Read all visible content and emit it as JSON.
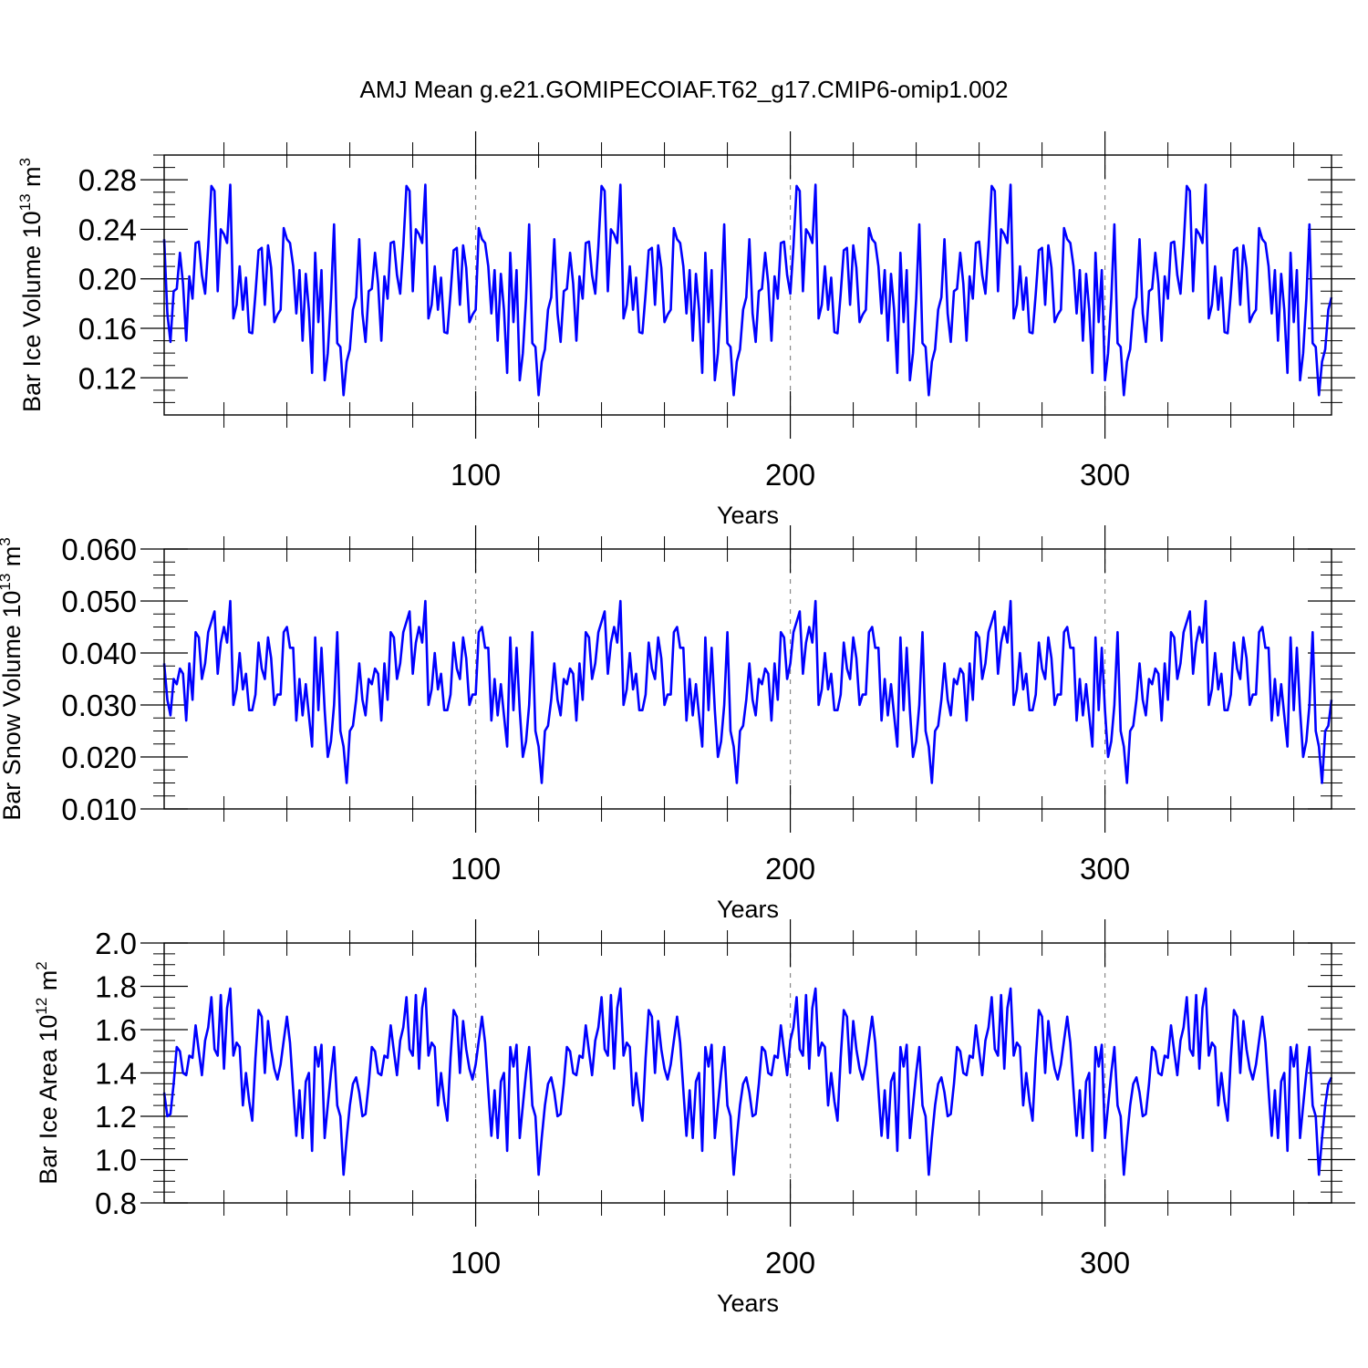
{
  "title": "AMJ Mean g.e21.GOMIPECOIAF.T62_g17.CMIP6-omip1.002",
  "line_color": "#0000ff",
  "chart_data": [
    {
      "type": "line",
      "ylabel_main": "Bar Ice Volume 10",
      "ylabel_exp": "13",
      "ylabel_unit": " m",
      "ylabel_unit_exp": "3",
      "xlabel": "Years",
      "xlim": [
        1,
        372
      ],
      "ylim": [
        0.09,
        0.3
      ],
      "yticks": [
        0.12,
        0.16,
        0.2,
        0.24,
        0.28
      ],
      "ytick_labels": [
        "0.12",
        "0.16",
        "0.20",
        "0.24",
        "0.28"
      ],
      "xticks": [
        100,
        200,
        300
      ],
      "xtick_labels": [
        "100",
        "200",
        "300"
      ],
      "grid_vertical_dashed": [
        100,
        200,
        300
      ],
      "pattern_start_year": 1,
      "pattern_period": 62,
      "repeats": 6,
      "pattern_values": [
        0.232,
        0.172,
        0.149,
        0.19,
        0.192,
        0.221,
        0.196,
        0.15,
        0.202,
        0.184,
        0.229,
        0.23,
        0.203,
        0.188,
        0.226,
        0.275,
        0.271,
        0.19,
        0.24,
        0.236,
        0.229,
        0.276,
        0.168,
        0.179,
        0.21,
        0.175,
        0.201,
        0.157,
        0.156,
        0.188,
        0.223,
        0.225,
        0.179,
        0.227,
        0.209,
        0.165,
        0.171,
        0.175,
        0.241,
        0.232,
        0.229,
        0.21,
        0.172,
        0.207,
        0.15,
        0.204,
        0.175,
        0.124,
        0.221,
        0.165,
        0.207,
        0.118,
        0.14,
        0.184,
        0.244,
        0.148,
        0.145,
        0.106,
        0.133,
        0.143,
        0.175,
        0.185
      ]
    },
    {
      "type": "line",
      "ylabel_main": "Bar Snow Volume 10",
      "ylabel_exp": "13",
      "ylabel_unit": " m",
      "ylabel_unit_exp": "3",
      "xlabel": "Years",
      "xlim": [
        1,
        372
      ],
      "ylim": [
        0.01,
        0.06
      ],
      "yticks": [
        0.01,
        0.02,
        0.03,
        0.04,
        0.05,
        0.06
      ],
      "ytick_labels": [
        "0.010",
        "0.020",
        "0.030",
        "0.040",
        "0.050",
        "0.060"
      ],
      "xticks": [
        100,
        200,
        300
      ],
      "xtick_labels": [
        "100",
        "200",
        "300"
      ],
      "grid_vertical_dashed": [
        100,
        200,
        300
      ],
      "pattern_start_year": 1,
      "pattern_period": 62,
      "repeats": 6,
      "pattern_values": [
        0.038,
        0.031,
        0.028,
        0.035,
        0.034,
        0.037,
        0.036,
        0.027,
        0.038,
        0.031,
        0.044,
        0.043,
        0.035,
        0.038,
        0.044,
        0.046,
        0.048,
        0.036,
        0.042,
        0.045,
        0.042,
        0.05,
        0.03,
        0.033,
        0.04,
        0.033,
        0.036,
        0.029,
        0.029,
        0.032,
        0.042,
        0.037,
        0.035,
        0.043,
        0.039,
        0.03,
        0.032,
        0.032,
        0.044,
        0.045,
        0.041,
        0.041,
        0.027,
        0.035,
        0.028,
        0.034,
        0.028,
        0.022,
        0.043,
        0.029,
        0.041,
        0.029,
        0.02,
        0.023,
        0.03,
        0.044,
        0.025,
        0.022,
        0.015,
        0.025,
        0.026,
        0.031
      ]
    },
    {
      "type": "line",
      "ylabel_main": "Bar Ice Area 10",
      "ylabel_exp": "12",
      "ylabel_unit": " m",
      "ylabel_unit_exp": "2",
      "xlabel": "Years",
      "xlim": [
        1,
        372
      ],
      "ylim": [
        0.8,
        2.0
      ],
      "yticks": [
        0.8,
        1.0,
        1.2,
        1.4,
        1.6,
        1.8,
        2.0
      ],
      "ytick_labels": [
        "0.8",
        "1.0",
        "1.2",
        "1.4",
        "1.6",
        "1.8",
        "2.0"
      ],
      "xticks": [
        100,
        200,
        300
      ],
      "xtick_labels": [
        "100",
        "200",
        "300"
      ],
      "grid_vertical_dashed": [
        100,
        200,
        300
      ],
      "pattern_start_year": 1,
      "pattern_period": 62,
      "repeats": 6,
      "pattern_values": [
        1.31,
        1.2,
        1.21,
        1.35,
        1.52,
        1.5,
        1.4,
        1.39,
        1.48,
        1.47,
        1.62,
        1.5,
        1.39,
        1.55,
        1.61,
        1.75,
        1.51,
        1.48,
        1.76,
        1.42,
        1.7,
        1.79,
        1.48,
        1.54,
        1.52,
        1.25,
        1.4,
        1.27,
        1.18,
        1.47,
        1.69,
        1.66,
        1.4,
        1.64,
        1.51,
        1.42,
        1.37,
        1.44,
        1.55,
        1.66,
        1.54,
        1.32,
        1.11,
        1.32,
        1.1,
        1.36,
        1.4,
        1.04,
        1.52,
        1.43,
        1.53,
        1.1,
        1.25,
        1.4,
        1.52,
        1.25,
        1.2,
        0.93,
        1.1,
        1.25,
        1.35,
        1.38
      ]
    }
  ]
}
